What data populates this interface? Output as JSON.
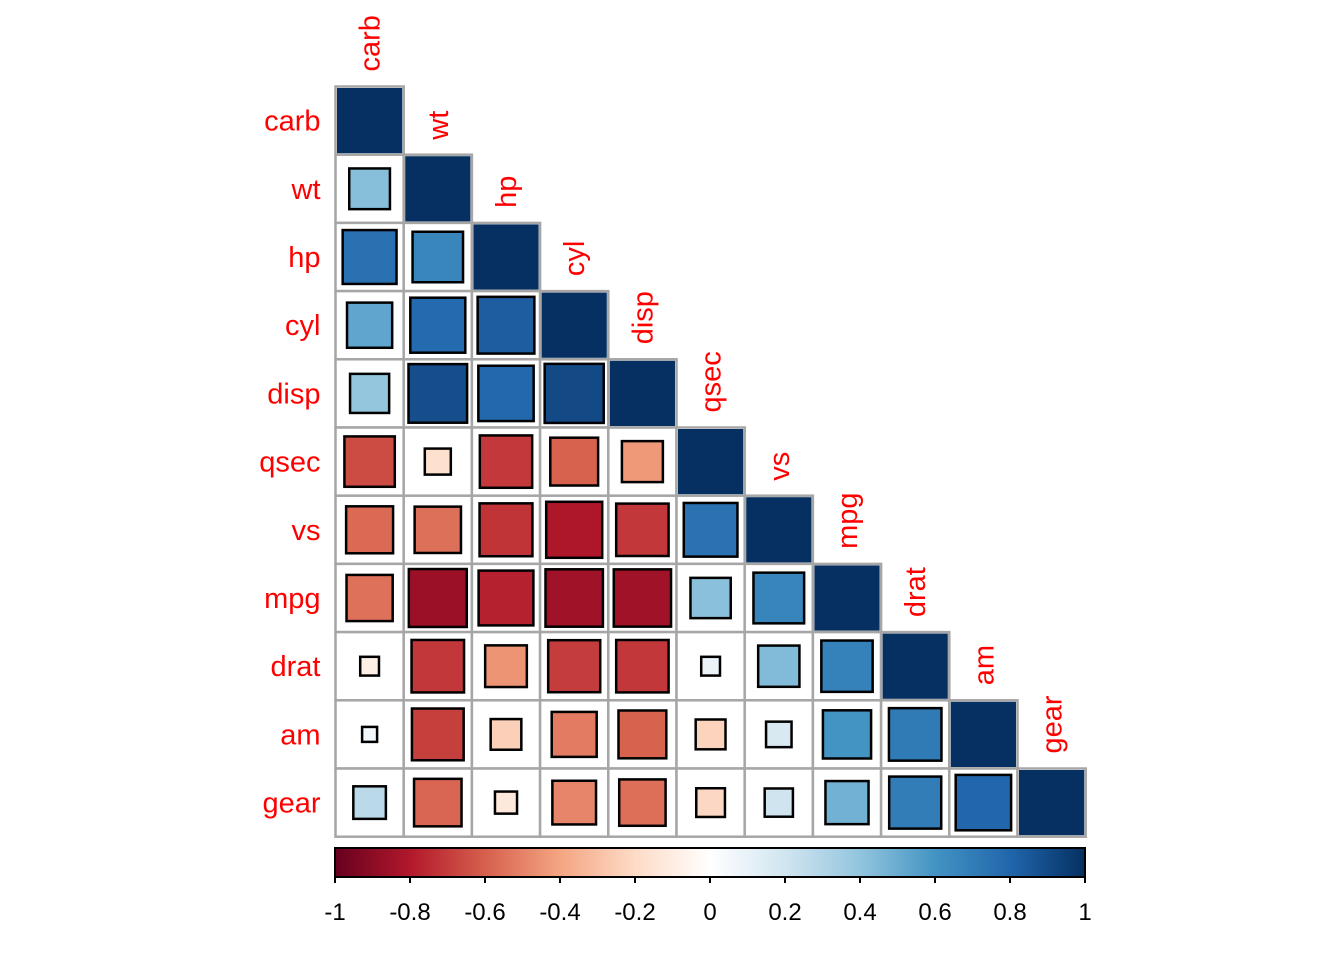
{
  "chart_data": {
    "type": "heatmap",
    "subtype": "corrplot-lower-square",
    "title": "",
    "variables": [
      "carb",
      "wt",
      "hp",
      "cyl",
      "disp",
      "qsec",
      "vs",
      "mpg",
      "drat",
      "am",
      "gear"
    ],
    "matrix": [
      [
        1.0,
        0.428,
        0.75,
        0.527,
        0.395,
        -0.656,
        -0.57,
        -0.551,
        -0.091,
        0.058,
        0.274
      ],
      [
        0.428,
        1.0,
        0.659,
        0.782,
        0.888,
        -0.175,
        -0.555,
        -0.868,
        -0.712,
        -0.692,
        -0.583
      ],
      [
        0.75,
        0.659,
        1.0,
        0.832,
        0.791,
        -0.708,
        -0.723,
        -0.776,
        -0.449,
        -0.243,
        -0.126
      ],
      [
        0.527,
        0.782,
        0.832,
        1.0,
        0.902,
        -0.591,
        -0.811,
        -0.852,
        -0.7,
        -0.523,
        -0.493
      ],
      [
        0.395,
        0.888,
        0.791,
        0.902,
        1.0,
        -0.434,
        -0.71,
        -0.848,
        -0.71,
        -0.591,
        -0.556
      ],
      [
        -0.656,
        -0.175,
        -0.708,
        -0.591,
        -0.434,
        1.0,
        0.745,
        0.419,
        0.091,
        -0.23,
        -0.213
      ],
      [
        -0.57,
        -0.555,
        -0.723,
        -0.811,
        -0.71,
        0.745,
        1.0,
        0.664,
        0.44,
        0.168,
        0.206
      ],
      [
        -0.551,
        -0.868,
        -0.776,
        -0.852,
        -0.848,
        0.419,
        0.664,
        1.0,
        0.681,
        0.6,
        0.48
      ],
      [
        -0.091,
        -0.712,
        -0.449,
        -0.7,
        -0.71,
        0.091,
        0.44,
        0.681,
        1.0,
        0.713,
        0.7
      ],
      [
        0.058,
        -0.692,
        -0.243,
        -0.523,
        -0.591,
        -0.23,
        0.168,
        0.6,
        0.713,
        1.0,
        0.794
      ],
      [
        0.274,
        -0.583,
        -0.126,
        -0.493,
        -0.556,
        -0.213,
        0.206,
        0.48,
        0.7,
        0.794,
        1.0
      ]
    ],
    "triangle": "lower",
    "colorbar": {
      "ticks": [
        "-1",
        "-0.8",
        "-0.6",
        "-0.4",
        "-0.2",
        "0",
        "0.2",
        "0.4",
        "0.6",
        "0.8",
        "1"
      ],
      "range": [
        -1,
        1
      ],
      "placement": "bottom"
    },
    "palette": [
      "#67001F",
      "#B2182B",
      "#D6604D",
      "#F4A582",
      "#FDDBC7",
      "#FFFFFF",
      "#D1E5F0",
      "#92C5DE",
      "#4393C3",
      "#2166AC",
      "#053061"
    ],
    "label_color": "#FF0000",
    "grid_color": "#A6A6A6"
  }
}
